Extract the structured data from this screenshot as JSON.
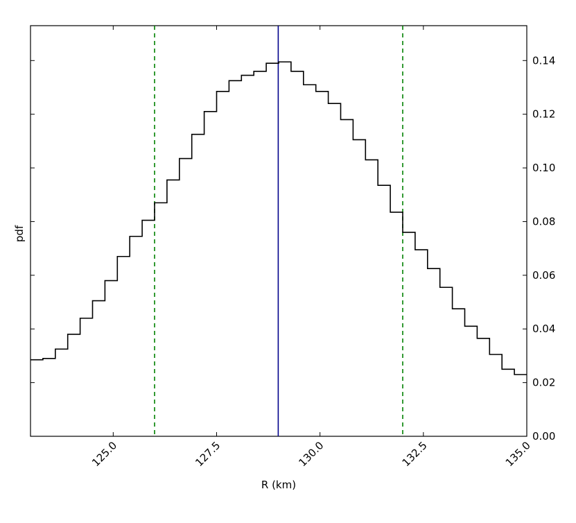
{
  "chart_data": {
    "type": "step",
    "title": "",
    "xlabel": "R (km)",
    "ylabel": "pdf",
    "xlim": [
      123.0,
      135.0
    ],
    "ylim": [
      0.0,
      0.153
    ],
    "x_ticks": [
      "125.0",
      "127.5",
      "130.0",
      "132.5",
      "135.0"
    ],
    "y_ticks": [
      "0.00",
      "0.02",
      "0.04",
      "0.06",
      "0.08",
      "0.10",
      "0.12",
      "0.14"
    ],
    "y_axis_side": "right",
    "grid": false,
    "legend": "none",
    "histogram": {
      "bin_edges": [
        123.0,
        123.3,
        123.6,
        123.9,
        124.2,
        124.5,
        124.8,
        125.1,
        125.4,
        125.7,
        126.0,
        126.3,
        126.6,
        126.9,
        127.2,
        127.5,
        127.8,
        128.1,
        128.4,
        128.7,
        129.0,
        129.3,
        129.6,
        129.9,
        130.2,
        130.5,
        130.8,
        131.1,
        131.4,
        131.7,
        132.0,
        132.3,
        132.6,
        132.9,
        133.2,
        133.5,
        133.8,
        134.1,
        134.4,
        134.7,
        135.0
      ],
      "values": [
        0.0285,
        0.029,
        0.0325,
        0.038,
        0.044,
        0.0505,
        0.058,
        0.067,
        0.0745,
        0.0805,
        0.087,
        0.0955,
        0.1035,
        0.1125,
        0.121,
        0.1285,
        0.1325,
        0.1345,
        0.136,
        0.139,
        0.1395,
        0.136,
        0.131,
        0.1285,
        0.124,
        0.118,
        0.1105,
        0.103,
        0.0935,
        0.0835,
        0.076,
        0.0695,
        0.0625,
        0.0555,
        0.0475,
        0.041,
        0.0365,
        0.0305,
        0.025,
        0.023
      ]
    },
    "vertical_lines": [
      {
        "x": 128.99,
        "color": "#00008b",
        "style": "solid"
      },
      {
        "x": 126.0,
        "color": "#008000",
        "style": "dashed"
      },
      {
        "x": 132.0,
        "color": "#008000",
        "style": "dashed"
      }
    ],
    "colors": {
      "histogram": "#000000",
      "frame": "#000000"
    }
  }
}
